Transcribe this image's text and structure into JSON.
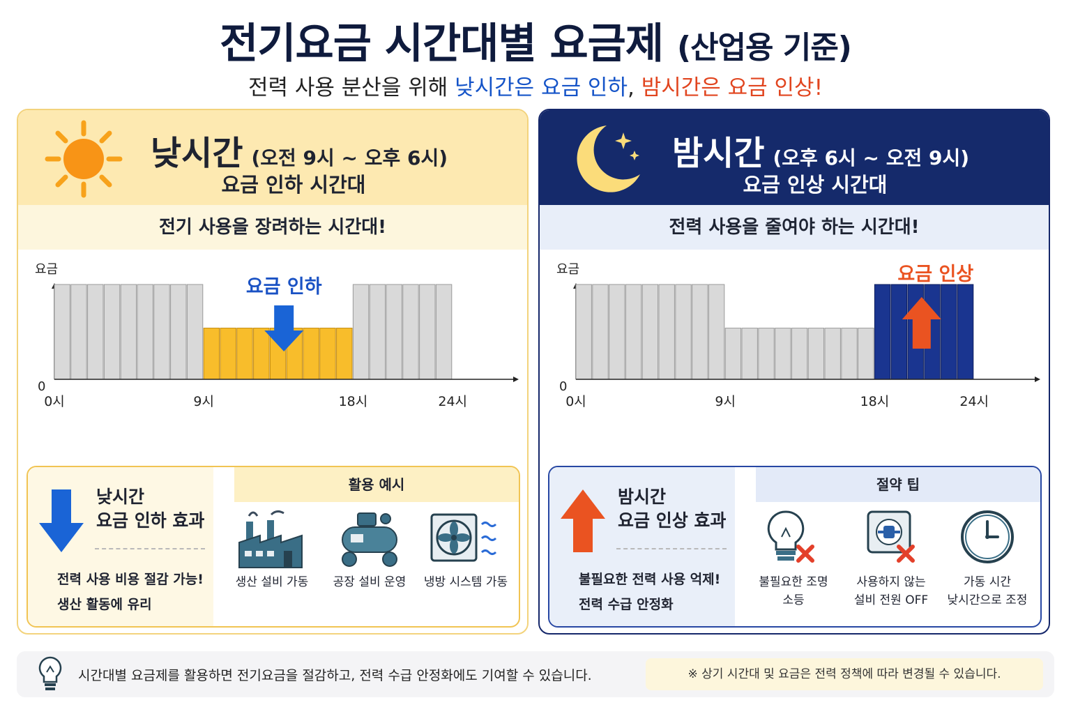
{
  "header": {
    "title": "전기요금 시간대별 요금제",
    "title_paren": "(산업용 기준)",
    "subtitle_prefix": "전력 사용 분산을 위해 ",
    "subtitle_blue": "낮시간은 요금 인하",
    "subtitle_comma": ", ",
    "subtitle_red": "밤시간은 요금 인상!"
  },
  "day": {
    "title": "낮시간",
    "range": "(오전 9시 ~ 오후 6시)",
    "subtitle": "요금 인하 시간대",
    "slogan": "전기 사용을 장려하는 시간대!",
    "effect_title": "낮시간\n요금 인하 효과",
    "effect_desc1": "전력 사용 비용 절감 가능!",
    "effect_desc2": "생산 활동에 유리",
    "examples_header": "활용 예시",
    "examples": [
      "생산 설비 가동",
      "공장 설비 운영",
      "냉방 시스템 가동"
    ]
  },
  "night": {
    "title": "밤시간",
    "range": "(오후 6시 ~ 오전 9시)",
    "subtitle": "요금 인상 시간대",
    "slogan": "전력 사용을 줄여야 하는 시간대!",
    "effect_title": "밤시간\n요금 인상 효과",
    "effect_desc1": "불필요한 전력 사용 억제!",
    "effect_desc2": "전력 수급 안정화",
    "tips_header": "절약 팁",
    "tips": [
      "불필요한 조명\n소등",
      "사용하지 않는\n설비 전원 OFF",
      "가동 시간\n낮시간으로 조정"
    ]
  },
  "chart_data": [
    {
      "type": "bar",
      "ylabel": "요금",
      "x_tick_labels": [
        "0",
        "0시",
        "9시",
        "18시",
        "24시"
      ],
      "annotation": "요금 인하",
      "hours": [
        0,
        1,
        2,
        3,
        4,
        5,
        6,
        7,
        8,
        9,
        10,
        11,
        12,
        13,
        14,
        15,
        16,
        17,
        18,
        19,
        20,
        21,
        22,
        23
      ],
      "values": [
        1,
        1,
        1,
        1,
        1,
        1,
        1,
        1,
        1,
        0.54,
        0.54,
        0.54,
        0.54,
        0.54,
        0.54,
        0.54,
        0.54,
        0.54,
        1,
        1,
        1,
        1,
        1,
        1
      ],
      "highlight_hours": [
        9,
        17
      ],
      "colors": {
        "normal": "#d9d9d9",
        "highlight": "#f8bd2b",
        "arrow": "#1a64d6",
        "annotation": "#1a52c4"
      }
    },
    {
      "type": "bar",
      "ylabel": "요금",
      "x_tick_labels": [
        "0",
        "0시",
        "9시",
        "18시",
        "24시"
      ],
      "annotation": "요금 인상",
      "hours": [
        0,
        1,
        2,
        3,
        4,
        5,
        6,
        7,
        8,
        9,
        10,
        11,
        12,
        13,
        14,
        15,
        16,
        17,
        18,
        19,
        20,
        21,
        22,
        23
      ],
      "values": [
        1,
        1,
        1,
        1,
        1,
        1,
        1,
        1,
        1,
        0.54,
        0.54,
        0.54,
        0.54,
        0.54,
        0.54,
        0.54,
        0.54,
        0.54,
        1,
        1,
        1,
        1,
        1,
        1
      ],
      "highlight_hours": [
        18,
        23
      ],
      "colors": {
        "normal": "#d9d9d9",
        "highlight": "#1a3590",
        "arrow": "#ea5321",
        "annotation": "#ea5321"
      }
    }
  ],
  "footer": {
    "text": "시간대별 요금제를 활용하면 전기요금을 절감하고, 전력 수급 안정화에도 기여할 수 있습니다.",
    "note": "※ 상기 시간대 및 요금은 전력 정책에 따라 변경될 수 있습니다."
  }
}
